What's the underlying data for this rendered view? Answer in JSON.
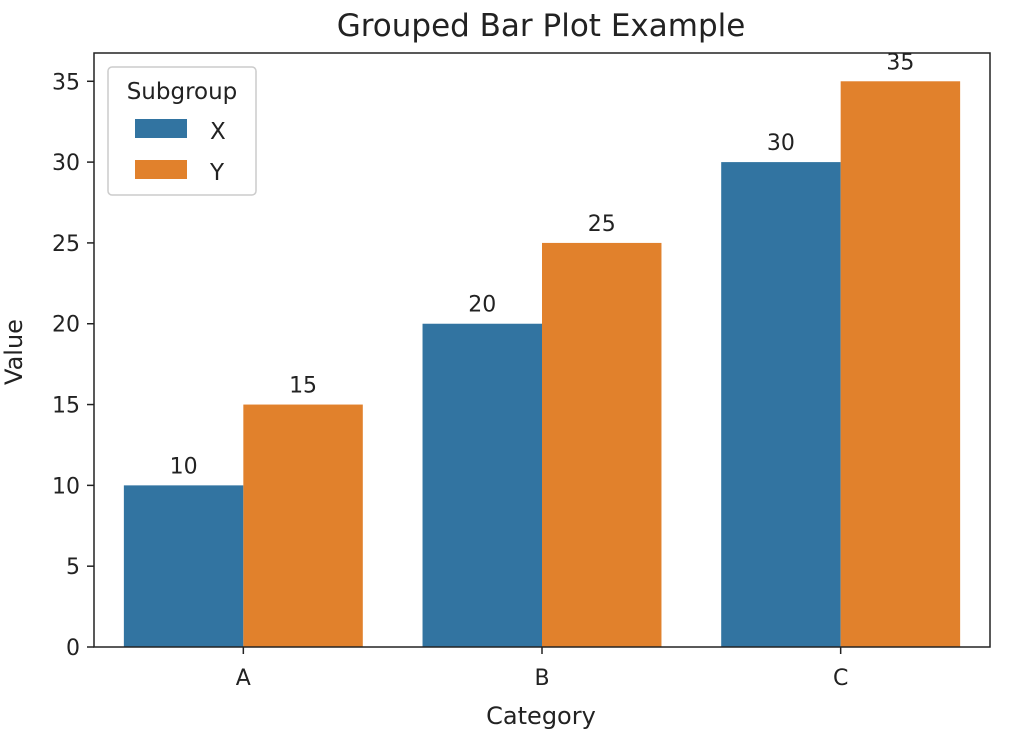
{
  "chart_data": {
    "type": "bar",
    "title": "Grouped Bar Plot Example",
    "xlabel": "Category",
    "ylabel": "Value",
    "categories": [
      "A",
      "B",
      "C"
    ],
    "series": [
      {
        "name": "X",
        "color": "#3274a1",
        "values": [
          10,
          20,
          30
        ]
      },
      {
        "name": "Y",
        "color": "#e1812c",
        "values": [
          15,
          25,
          35
        ]
      }
    ],
    "ylim": [
      0,
      36.75
    ],
    "yticks": [
      0,
      5,
      10,
      15,
      20,
      25,
      30,
      35
    ],
    "data_labels": true,
    "grid": false,
    "legend": {
      "title": "Subgroup",
      "placement": "top-left"
    }
  }
}
